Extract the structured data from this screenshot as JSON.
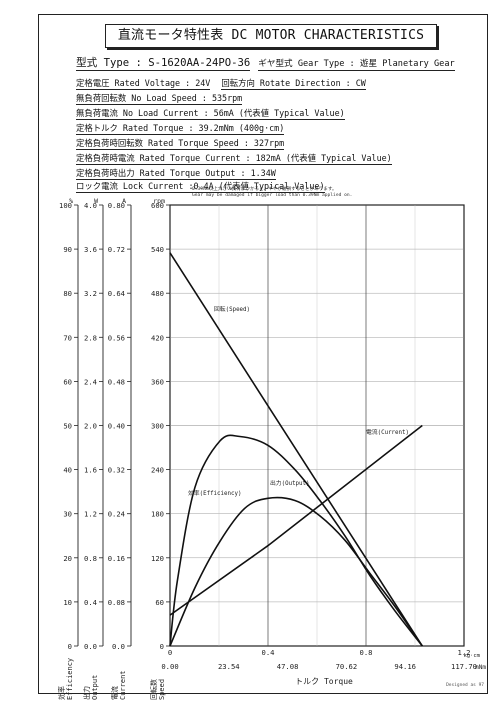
{
  "title": "直流モータ特性表 DC MOTOR CHARACTERISTICS",
  "specs": {
    "type_line": "型式 Type : S-1620AA-24PO-36",
    "gear_type": "ギヤ型式 Gear Type : 遊星 Planetary Gear",
    "rated_voltage": "定格電圧 Rated Voltage : 24V",
    "rotation": "回転方向 Rotate Direction : CW",
    "no_load_speed": "無負荷回転数 No Load Speed : 535rpm",
    "no_load_current": "無負荷電流 No Load Current : 56mA (代表値 Typical Value)",
    "rated_torque": "定格トルク Rated Torque : 39.2mNm (400g·cm)",
    "rated_torque_speed": "定格負荷時回転数 Rated Torque Speed : 327rpm",
    "rated_torque_current": "定格負荷時電流 Rated Torque Current : 182mA (代表値 Typical Value)",
    "rated_torque_output": "定格負荷時出力 Rated Torque Output : 1.34W",
    "lock_current": "ロック電流 Lock Current :0.4A (代表値 Typical Value)"
  },
  "note": {
    "line1": "0.39Nm以上大きい負荷がかかると、ギヤが破損することがあります。",
    "line2": "Gear may be damaged if bigger load than 0.39Nm applied on."
  },
  "footer": "Designed as 97",
  "chart_data": {
    "type": "line",
    "x_axis": {
      "label": "トルク Torque",
      "kgcm_ticks": [
        "0",
        "0.4",
        "0.8",
        "1.2"
      ],
      "kgcm_unit": "kg·cm",
      "mnm_ticks": [
        "0.00",
        "23.54",
        "47.08",
        "70.62",
        "94.16",
        "117.70"
      ],
      "mnm_unit": "mNm",
      "xlim": [
        0,
        117.7
      ]
    },
    "left_axes": [
      {
        "label": "効率 Efficiency",
        "unit": "%",
        "ticks": [
          "0",
          "10",
          "20",
          "30",
          "40",
          "50",
          "60",
          "70",
          "80",
          "90",
          "100"
        ]
      },
      {
        "label": "出力 Output",
        "unit": "W",
        "ticks": [
          "0.0",
          "0.4",
          "0.8",
          "1.2",
          "1.6",
          "2.0",
          "2.4",
          "2.8",
          "3.2",
          "3.6",
          "4.0"
        ]
      },
      {
        "label": "電流 Current",
        "unit": "A",
        "ticks": [
          "0.0",
          "0.08",
          "0.16",
          "0.24",
          "0.32",
          "0.40",
          "0.48",
          "0.56",
          "0.64",
          "0.72",
          "0.80"
        ]
      },
      {
        "label": "回転数 Speed",
        "unit": "rpm",
        "ticks": [
          "0",
          "60",
          "120",
          "180",
          "240",
          "300",
          "360",
          "420",
          "480",
          "540",
          "600"
        ]
      }
    ],
    "series": [
      {
        "name": "回転(Speed)",
        "unit": "rpm",
        "ymax": 600,
        "x": [
          0,
          39.2,
          101
        ],
        "y": [
          535,
          327,
          0
        ]
      },
      {
        "name": "電流(Current)",
        "unit": "A",
        "ymax": 0.8,
        "x": [
          0,
          39.2,
          101
        ],
        "y": [
          0.056,
          0.182,
          0.4
        ]
      },
      {
        "name": "出力(Output)",
        "unit": "W",
        "ymax": 4.0,
        "x": [
          0,
          10,
          20,
          30,
          39.2,
          50,
          60,
          70,
          80,
          90,
          101
        ],
        "y": [
          0,
          0.53,
          0.95,
          1.25,
          1.34,
          1.32,
          1.18,
          0.96,
          0.66,
          0.36,
          0
        ]
      },
      {
        "name": "効率(Efficiency)",
        "unit": "%",
        "ymax": 100,
        "x": [
          0,
          3,
          10,
          20,
          28,
          39.2,
          50,
          60,
          70,
          80,
          90,
          101
        ],
        "y": [
          0,
          15,
          36,
          46.5,
          47.5,
          45.5,
          40,
          33,
          25,
          16,
          8,
          0
        ]
      }
    ]
  }
}
